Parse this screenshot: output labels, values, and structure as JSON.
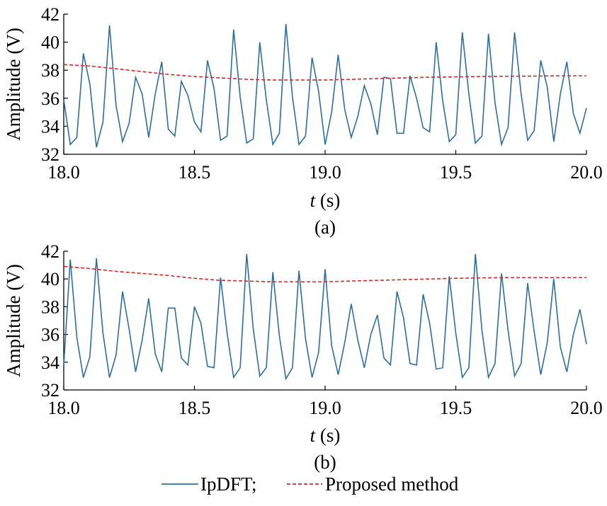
{
  "chart_data": [
    {
      "type": "line",
      "caption": "(a)",
      "xlabel_var": "t",
      "xlabel_unit": "(s)",
      "ylabel": "Amplitude (V)",
      "xlim": [
        18.0,
        20.0
      ],
      "ylim": [
        32,
        42
      ],
      "xticks": [
        "18.0",
        "18.5",
        "19.0",
        "19.5",
        "20.0"
      ],
      "yticks": [
        "32",
        "34",
        "36",
        "38",
        "40",
        "42"
      ],
      "series": [
        {
          "name": "IpDFT",
          "color": "#2e6e9e",
          "style": "solid",
          "x": [
            18.0,
            18.025,
            18.05,
            18.075,
            18.1,
            18.125,
            18.15,
            18.175,
            18.2,
            18.225,
            18.25,
            18.275,
            18.3,
            18.325,
            18.35,
            18.375,
            18.4,
            18.425,
            18.45,
            18.475,
            18.5,
            18.525,
            18.55,
            18.575,
            18.6,
            18.625,
            18.65,
            18.675,
            18.7,
            18.725,
            18.75,
            18.775,
            18.8,
            18.825,
            18.85,
            18.875,
            18.9,
            18.925,
            18.95,
            18.975,
            19.0,
            19.025,
            19.05,
            19.075,
            19.1,
            19.125,
            19.15,
            19.175,
            19.2,
            19.225,
            19.25,
            19.275,
            19.3,
            19.325,
            19.35,
            19.375,
            19.4,
            19.425,
            19.45,
            19.475,
            19.5,
            19.525,
            19.55,
            19.575,
            19.6,
            19.625,
            19.65,
            19.675,
            19.7,
            19.725,
            19.75,
            19.775,
            19.8,
            19.825,
            19.85,
            19.875,
            19.9,
            19.925,
            19.95,
            19.975,
            20.0
          ],
          "y": [
            35.9,
            32.7,
            33.2,
            39.2,
            37.0,
            32.5,
            34.3,
            41.2,
            35.5,
            32.9,
            34.2,
            37.5,
            36.3,
            33.2,
            36.3,
            38.6,
            33.8,
            33.3,
            37.2,
            36.2,
            34.3,
            33.6,
            38.7,
            36.7,
            33.0,
            33.3,
            40.9,
            36.1,
            32.8,
            33.1,
            40.0,
            35.9,
            32.7,
            33.5,
            41.3,
            36.1,
            32.7,
            33.3,
            38.9,
            36.5,
            32.7,
            35.0,
            39.1,
            35.2,
            33.2,
            34.7,
            36.9,
            35.6,
            33.4,
            37.5,
            37.4,
            33.5,
            33.5,
            37.6,
            36.0,
            33.9,
            33.6,
            40.0,
            35.8,
            32.9,
            33.4,
            40.7,
            36.3,
            32.8,
            33.3,
            40.6,
            35.7,
            32.7,
            33.9,
            40.7,
            36.3,
            33.0,
            33.7,
            38.7,
            36.8,
            32.9,
            36.3,
            38.6,
            34.9,
            33.5,
            35.3
          ]
        },
        {
          "name": "Proposed method",
          "color": "#d62728",
          "style": "dashed",
          "x": [
            18.0,
            18.1,
            18.2,
            18.3,
            18.4,
            18.5,
            18.6,
            18.7,
            18.8,
            18.9,
            19.0,
            19.1,
            19.2,
            19.3,
            19.4,
            19.5,
            19.6,
            19.7,
            19.8,
            19.9,
            20.0
          ],
          "y": [
            38.4,
            38.3,
            38.1,
            37.9,
            37.7,
            37.55,
            37.45,
            37.35,
            37.3,
            37.3,
            37.3,
            37.35,
            37.4,
            37.45,
            37.5,
            37.52,
            37.55,
            37.57,
            37.58,
            37.6,
            37.6
          ]
        }
      ]
    },
    {
      "type": "line",
      "caption": "(b)",
      "xlabel_var": "t",
      "xlabel_unit": "(s)",
      "ylabel": "Amplitude (V)",
      "xlim": [
        18.0,
        20.0
      ],
      "ylim": [
        32,
        42
      ],
      "xticks": [
        "18.0",
        "18.5",
        "19.0",
        "19.5",
        "20.0"
      ],
      "yticks": [
        "32",
        "34",
        "36",
        "38",
        "40",
        "42"
      ],
      "series": [
        {
          "name": "IpDFT",
          "color": "#2e6e9e",
          "style": "solid",
          "x": [
            18.0,
            18.025,
            18.05,
            18.075,
            18.1,
            18.125,
            18.15,
            18.175,
            18.2,
            18.225,
            18.25,
            18.275,
            18.3,
            18.325,
            18.35,
            18.375,
            18.4,
            18.425,
            18.45,
            18.475,
            18.5,
            18.525,
            18.55,
            18.575,
            18.6,
            18.625,
            18.65,
            18.675,
            18.7,
            18.725,
            18.75,
            18.775,
            18.8,
            18.825,
            18.85,
            18.875,
            18.9,
            18.925,
            18.95,
            18.975,
            19.0,
            19.025,
            19.05,
            19.075,
            19.1,
            19.125,
            19.15,
            19.175,
            19.2,
            19.225,
            19.25,
            19.275,
            19.3,
            19.325,
            19.35,
            19.375,
            19.4,
            19.425,
            19.45,
            19.475,
            19.5,
            19.525,
            19.55,
            19.575,
            19.6,
            19.625,
            19.65,
            19.675,
            19.7,
            19.725,
            19.75,
            19.775,
            19.8,
            19.825,
            19.85,
            19.875,
            19.9,
            19.925,
            19.95,
            19.975,
            20.0
          ],
          "y": [
            33.8,
            41.4,
            35.8,
            32.9,
            34.4,
            41.5,
            36.1,
            32.9,
            34.5,
            39.1,
            36.4,
            33.3,
            35.6,
            38.6,
            34.6,
            33.3,
            37.9,
            37.9,
            34.3,
            33.8,
            38.0,
            36.8,
            33.7,
            33.6,
            40.1,
            36.1,
            32.9,
            33.6,
            41.8,
            36.4,
            33.0,
            33.6,
            40.5,
            35.9,
            32.8,
            33.6,
            40.6,
            35.7,
            32.9,
            34.7,
            40.7,
            35.2,
            33.1,
            35.4,
            38.2,
            35.6,
            33.6,
            36.0,
            37.4,
            34.3,
            33.8,
            39.1,
            37.2,
            33.9,
            33.8,
            38.9,
            36.8,
            33.5,
            33.6,
            40.2,
            36.1,
            32.9,
            33.6,
            41.8,
            36.3,
            32.9,
            33.9,
            40.4,
            36.3,
            33.0,
            33.9,
            39.7,
            36.2,
            33.1,
            35.4,
            40.0,
            35.1,
            33.3,
            36.0,
            37.8,
            35.3
          ]
        },
        {
          "name": "Proposed method",
          "color": "#d62728",
          "style": "dashed",
          "x": [
            18.0,
            18.1,
            18.2,
            18.3,
            18.4,
            18.5,
            18.6,
            18.7,
            18.8,
            18.9,
            19.0,
            19.1,
            19.2,
            19.3,
            19.4,
            19.5,
            19.6,
            19.7,
            19.8,
            19.9,
            20.0
          ],
          "y": [
            40.9,
            40.75,
            40.55,
            40.4,
            40.25,
            40.05,
            39.9,
            39.85,
            39.8,
            39.8,
            39.8,
            39.85,
            39.9,
            39.95,
            40.0,
            40.05,
            40.08,
            40.1,
            40.1,
            40.1,
            40.1
          ]
        }
      ]
    }
  ],
  "legend": {
    "items": [
      {
        "label": "IpDFT;",
        "color": "#2e6e9e",
        "style": "solid"
      },
      {
        "label": "Proposed method",
        "color": "#d62728",
        "style": "dashed"
      }
    ]
  }
}
